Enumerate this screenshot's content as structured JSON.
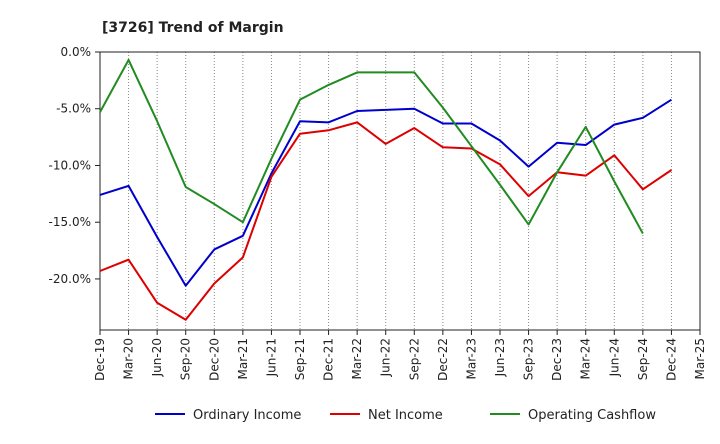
{
  "chart_data": {
    "type": "line",
    "title": "[3726]  Trend of Margin",
    "xlabel": "",
    "ylabel": "",
    "categories": [
      "Dec-19",
      "Mar-20",
      "Jun-20",
      "Sep-20",
      "Dec-20",
      "Mar-21",
      "Jun-21",
      "Sep-21",
      "Dec-21",
      "Mar-22",
      "Jun-22",
      "Sep-22",
      "Dec-22",
      "Mar-23",
      "Jun-23",
      "Sep-23",
      "Dec-23",
      "Mar-24",
      "Jun-24",
      "Sep-24",
      "Dec-24",
      "Mar-25"
    ],
    "ylim": [
      -24.5,
      0
    ],
    "yticks": [
      0,
      -5,
      -10,
      -15,
      -20
    ],
    "ytick_labels": [
      "0.0%",
      "-5.0%",
      "-10.0%",
      "-15.0%",
      "-20.0%"
    ],
    "grid": "vertical dotted",
    "legend_position": "bottom",
    "series": [
      {
        "name": "Ordinary Income",
        "color": "#0000cc",
        "values": [
          -12.6,
          -11.8,
          -16.3,
          -20.6,
          -17.4,
          -16.2,
          -10.7,
          -6.1,
          -6.2,
          -5.2,
          -5.1,
          -5.0,
          -6.3,
          -6.3,
          -7.8,
          -10.1,
          -8.0,
          -8.2,
          -6.4,
          -5.8,
          -4.2,
          null
        ]
      },
      {
        "name": "Net Income",
        "color": "#dd0000",
        "values": [
          -19.3,
          -18.3,
          -22.1,
          -23.6,
          -20.4,
          -18.1,
          -11.0,
          -7.2,
          -6.9,
          -6.2,
          -8.1,
          -6.7,
          -8.4,
          -8.5,
          -9.9,
          -12.7,
          -10.6,
          -10.9,
          -9.1,
          -12.1,
          -10.4,
          null
        ]
      },
      {
        "name": "Operating Cashflow",
        "color": "#228b22",
        "values": [
          -5.3,
          -0.7,
          -6.1,
          -11.9,
          -13.4,
          -15.0,
          -9.4,
          -4.2,
          -2.9,
          -1.8,
          -1.8,
          -1.8,
          -4.9,
          -8.3,
          -11.7,
          -15.2,
          -10.6,
          -6.6,
          -11.4,
          -16.0,
          null,
          null
        ]
      }
    ]
  }
}
